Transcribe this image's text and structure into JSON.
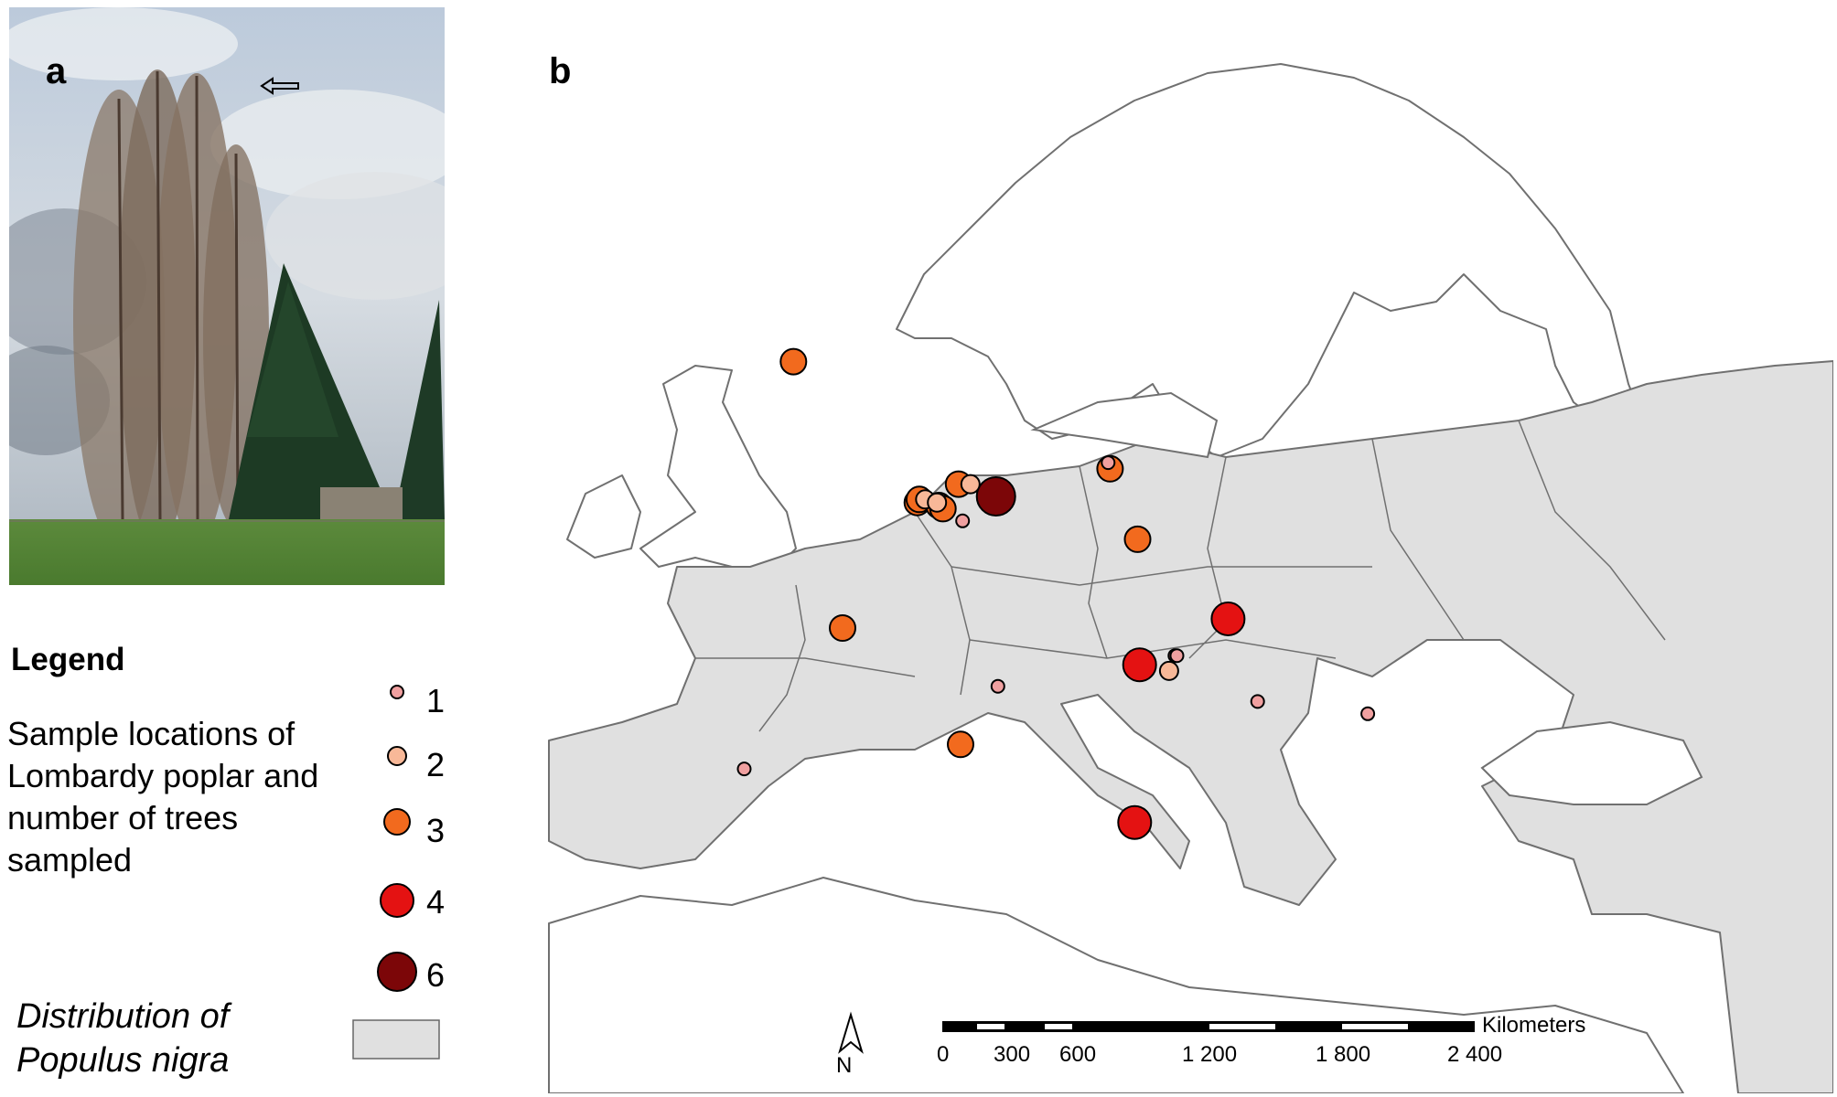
{
  "panel_a": {
    "letter": "a",
    "arrow_icon": "arrow-left-icon"
  },
  "legend": {
    "title": "Legend",
    "sample_label": "Sample locations of Lombardy poplar and number of trees sampled",
    "classes": [
      {
        "count": "1",
        "color": "#f0a0a0"
      },
      {
        "count": "2",
        "color": "#f8b898"
      },
      {
        "count": "3",
        "color": "#f26a1e"
      },
      {
        "count": "4",
        "color": "#e41212"
      },
      {
        "count": "6",
        "color": "#7c0608"
      }
    ],
    "distribution_label": "Distribution of Populus nigra",
    "distribution_color": "#e0e0e0"
  },
  "panel_b": {
    "letter": "b",
    "north_label": "N",
    "scale": {
      "unit": "Kilometers",
      "ticks": [
        "0",
        "300",
        "600",
        "1 200",
        "1 800",
        "2 400"
      ]
    },
    "land_color": "#ffffff",
    "border_color": "#707070",
    "sample_sites": [
      {
        "lat": 55.9,
        "lon": -3.1,
        "count": 3
      },
      {
        "lat": 51.3,
        "lon": 3.2,
        "count": 3
      },
      {
        "lat": 51.4,
        "lon": 3.3,
        "count": 3
      },
      {
        "lat": 51.4,
        "lon": 3.6,
        "count": 2
      },
      {
        "lat": 51.3,
        "lon": 4.2,
        "count": 2
      },
      {
        "lat": 51.2,
        "lon": 4.3,
        "count": 3
      },
      {
        "lat": 51.1,
        "lon": 4.5,
        "count": 3
      },
      {
        "lat": 51.9,
        "lon": 5.3,
        "count": 3
      },
      {
        "lat": 51.9,
        "lon": 5.9,
        "count": 2
      },
      {
        "lat": 51.5,
        "lon": 7.2,
        "count": 6
      },
      {
        "lat": 50.7,
        "lon": 5.5,
        "count": 1
      },
      {
        "lat": 52.4,
        "lon": 13.0,
        "count": 3
      },
      {
        "lat": 52.6,
        "lon": 12.9,
        "count": 1
      },
      {
        "lat": 50.1,
        "lon": 14.4,
        "count": 3
      },
      {
        "lat": 47.2,
        "lon": -0.6,
        "count": 3
      },
      {
        "lat": 45.3,
        "lon": 7.3,
        "count": 1
      },
      {
        "lat": 43.4,
        "lon": 5.4,
        "count": 3
      },
      {
        "lat": 42.6,
        "lon": -5.6,
        "count": 1
      },
      {
        "lat": 46.0,
        "lon": 14.5,
        "count": 4
      },
      {
        "lat": 46.3,
        "lon": 16.3,
        "count": 1
      },
      {
        "lat": 46.3,
        "lon": 16.4,
        "count": 1
      },
      {
        "lat": 45.8,
        "lon": 16.0,
        "count": 2
      },
      {
        "lat": 47.5,
        "lon": 19.0,
        "count": 4
      },
      {
        "lat": 44.8,
        "lon": 20.5,
        "count": 1
      },
      {
        "lat": 44.4,
        "lon": 26.1,
        "count": 1
      },
      {
        "lat": 40.85,
        "lon": 14.25,
        "count": 4
      }
    ]
  }
}
